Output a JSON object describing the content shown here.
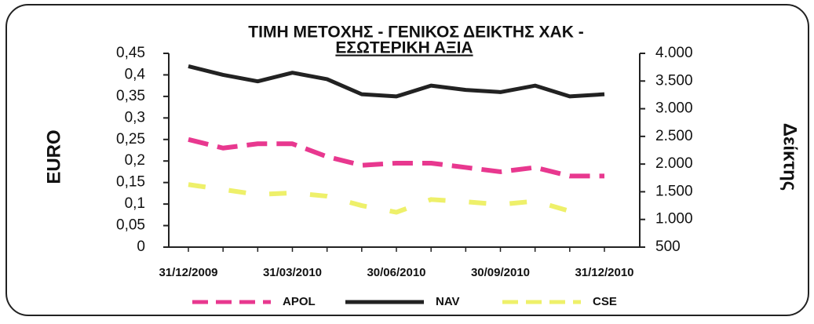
{
  "chart_data": {
    "type": "line",
    "title": [
      "ΤΙΜΗ ΜΕΤΟΧΗΣ - ΓΕΝΙΚΟΣ ΔΕΙΚΤΗΣ ΧΑΚ -",
      "ΕΣΩΤΕΡΙΚΗ ΑΞΙΑ"
    ],
    "ylabel": "EURO",
    "y2label": "Δείκτης",
    "categories": [
      "31/12/2009",
      null,
      null,
      "31/03/2010",
      null,
      null,
      "30/06/2010",
      null,
      null,
      "30/09/2010",
      null,
      null,
      "31/12/2010"
    ],
    "series": [
      {
        "name": "APOL",
        "color": "#e8388f",
        "dash": true,
        "values": [
          0.25,
          0.23,
          0.24,
          0.24,
          0.21,
          0.19,
          0.195,
          0.195,
          0.185,
          0.175,
          0.185,
          0.165,
          0.165
        ]
      },
      {
        "name": "NAV",
        "color": "#222222",
        "dash": false,
        "values": [
          0.42,
          0.4,
          0.385,
          0.405,
          0.39,
          0.355,
          0.35,
          0.375,
          0.365,
          0.36,
          0.375,
          0.35,
          0.355
        ]
      },
      {
        "name": "CSE",
        "color": "#eef06a",
        "dash": true,
        "axis": "y2",
        "values": [
          1630,
          1540,
          1450,
          1480,
          1420,
          1250,
          1130,
          1360,
          1320,
          1270,
          1330,
          1150,
          null
        ]
      }
    ],
    "ylim": [
      0,
      0.45
    ],
    "yticks": [
      0,
      {
        "value": 0.05,
        "label": "0,05"
      },
      {
        "value": 0.1,
        "label": "0,1"
      },
      {
        "value": 0.15,
        "label": "0,15"
      },
      {
        "value": 0.2,
        "label": "0,2"
      },
      {
        "value": 0.25,
        "label": "0,25"
      },
      {
        "value": 0.3,
        "label": "0,3"
      },
      {
        "value": 0.35,
        "label": "0,35"
      },
      {
        "value": 0.4,
        "label": "0,4"
      },
      {
        "value": 0.45,
        "label": "0,45"
      }
    ],
    "y2lim": [
      500,
      4000
    ],
    "y2ticks": [
      500,
      {
        "value": 1000,
        "label": "1.000"
      },
      {
        "value": 1500,
        "label": "1.500"
      },
      {
        "value": 2000,
        "label": "2.000"
      },
      {
        "value": 2500,
        "label": "2.500"
      },
      {
        "value": 3000,
        "label": "3.000"
      },
      {
        "value": 3500,
        "label": "3.500"
      },
      {
        "value": 4000,
        "label": "4.000"
      }
    ],
    "legend": "bottom"
  }
}
